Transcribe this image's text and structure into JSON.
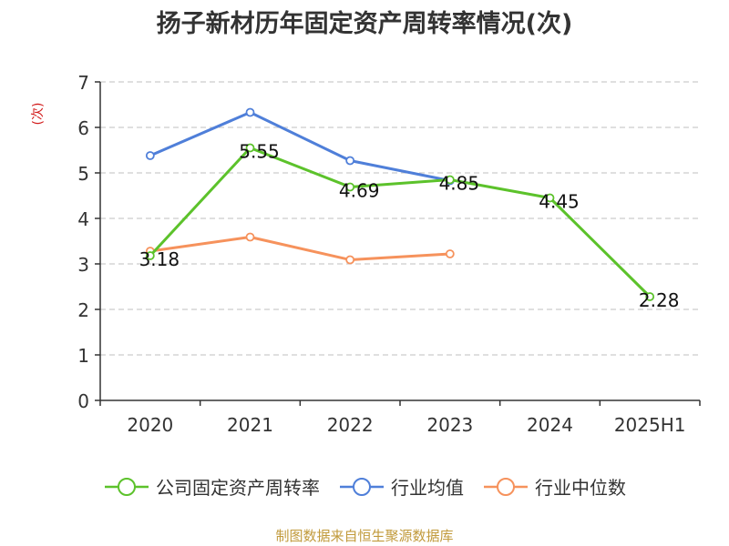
{
  "colors": {
    "company": "#5cc22b",
    "industry_avg": "#4f7fd9",
    "industry_median": "#f6925c",
    "ylabel": "#d21c1c",
    "source": "#c19a3b",
    "grid": "#cccccc",
    "axis": "#333333"
  },
  "legend": [
    {
      "name": "公司固定资产周转率",
      "series_index": 0
    },
    {
      "name": "行业均值",
      "series_index": 1
    },
    {
      "name": "行业中位数",
      "series_index": 2
    }
  ],
  "source": "制图数据来自恒生聚源数据库",
  "chart_data": {
    "type": "line",
    "title": "扬子新材历年固定资产周转率情况(次)",
    "xlabel": "",
    "ylabel": "(次)",
    "categories": [
      "2020",
      "2021",
      "2022",
      "2023",
      "2024",
      "2025H1"
    ],
    "ylim": [
      0,
      7
    ],
    "yticks": [
      0,
      1,
      2,
      3,
      4,
      5,
      6,
      7
    ],
    "grid": true,
    "legend_position": "bottom",
    "series": [
      {
        "name": "公司固定资产周转率",
        "values": [
          3.18,
          5.55,
          4.69,
          4.85,
          4.45,
          2.28
        ],
        "show_labels": true
      },
      {
        "name": "行业均值",
        "values": [
          5.38,
          6.33,
          5.27,
          4.83,
          null,
          null
        ],
        "show_labels": false
      },
      {
        "name": "行业中位数",
        "values": [
          3.28,
          3.59,
          3.09,
          3.22,
          null,
          null
        ],
        "show_labels": false
      }
    ]
  }
}
